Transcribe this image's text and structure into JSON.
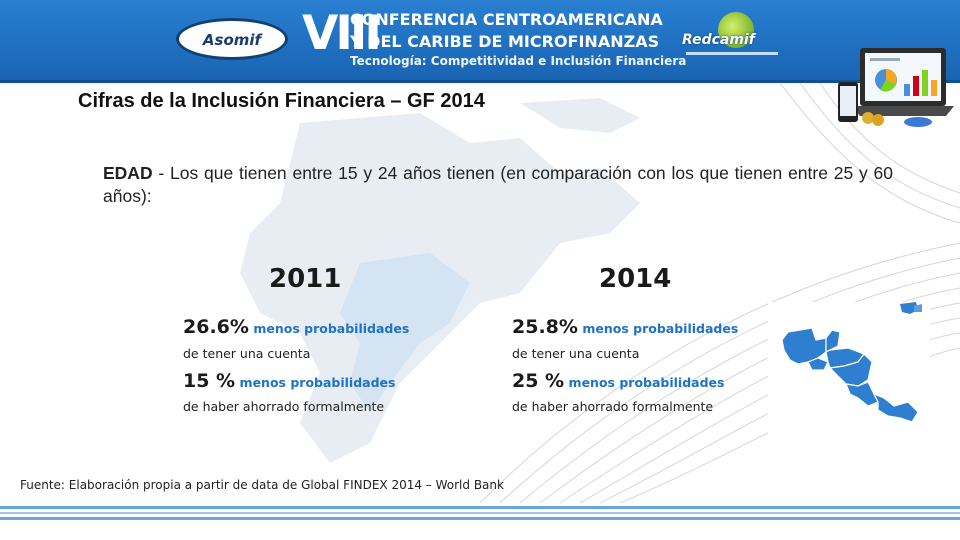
{
  "header": {
    "asomif_logo": "Asomif",
    "conference_number": "VIII",
    "conference_line1": "CONFERENCIA CENTROAMERICANA",
    "conference_line2": "Y DEL CARIBE DE MICROFINANZAS",
    "conference_line3": "Tecnología: Competitividad e Inclusión Financiera",
    "redcamif_logo": "Redcamif"
  },
  "slide": {
    "title": "Cifras de la Inclusión Financiera – GF 2014",
    "edad_label": "EDAD",
    "edad_text": " - Los que tienen entre 15 y 24 años tienen (en comparación con los que tienen entre 25 y 60 años):",
    "columns": [
      {
        "year": "2011",
        "stat1_value": "26.6%",
        "stat1_label": "menos probabilidades",
        "stat1_sub": "de tener una cuenta",
        "stat2_value": "15 %",
        "stat2_label": "menos probabilidades",
        "stat2_sub": "de haber ahorrado formalmente"
      },
      {
        "year": "2014",
        "stat1_value": "25.8%",
        "stat1_label": "menos probabilidades",
        "stat1_sub": "de tener una cuenta",
        "stat2_value": "25 %",
        "stat2_label": "menos probabilidades",
        "stat2_sub": "de haber ahorrado formalmente"
      }
    ],
    "source": "Fuente: Elaboración propia a partir de data de Global FINDEX 2014 – World Bank"
  },
  "colors": {
    "header_blue": "#1f6fc0",
    "accent_blue": "#1e73c6",
    "map_blue": "#2f7fd1"
  }
}
